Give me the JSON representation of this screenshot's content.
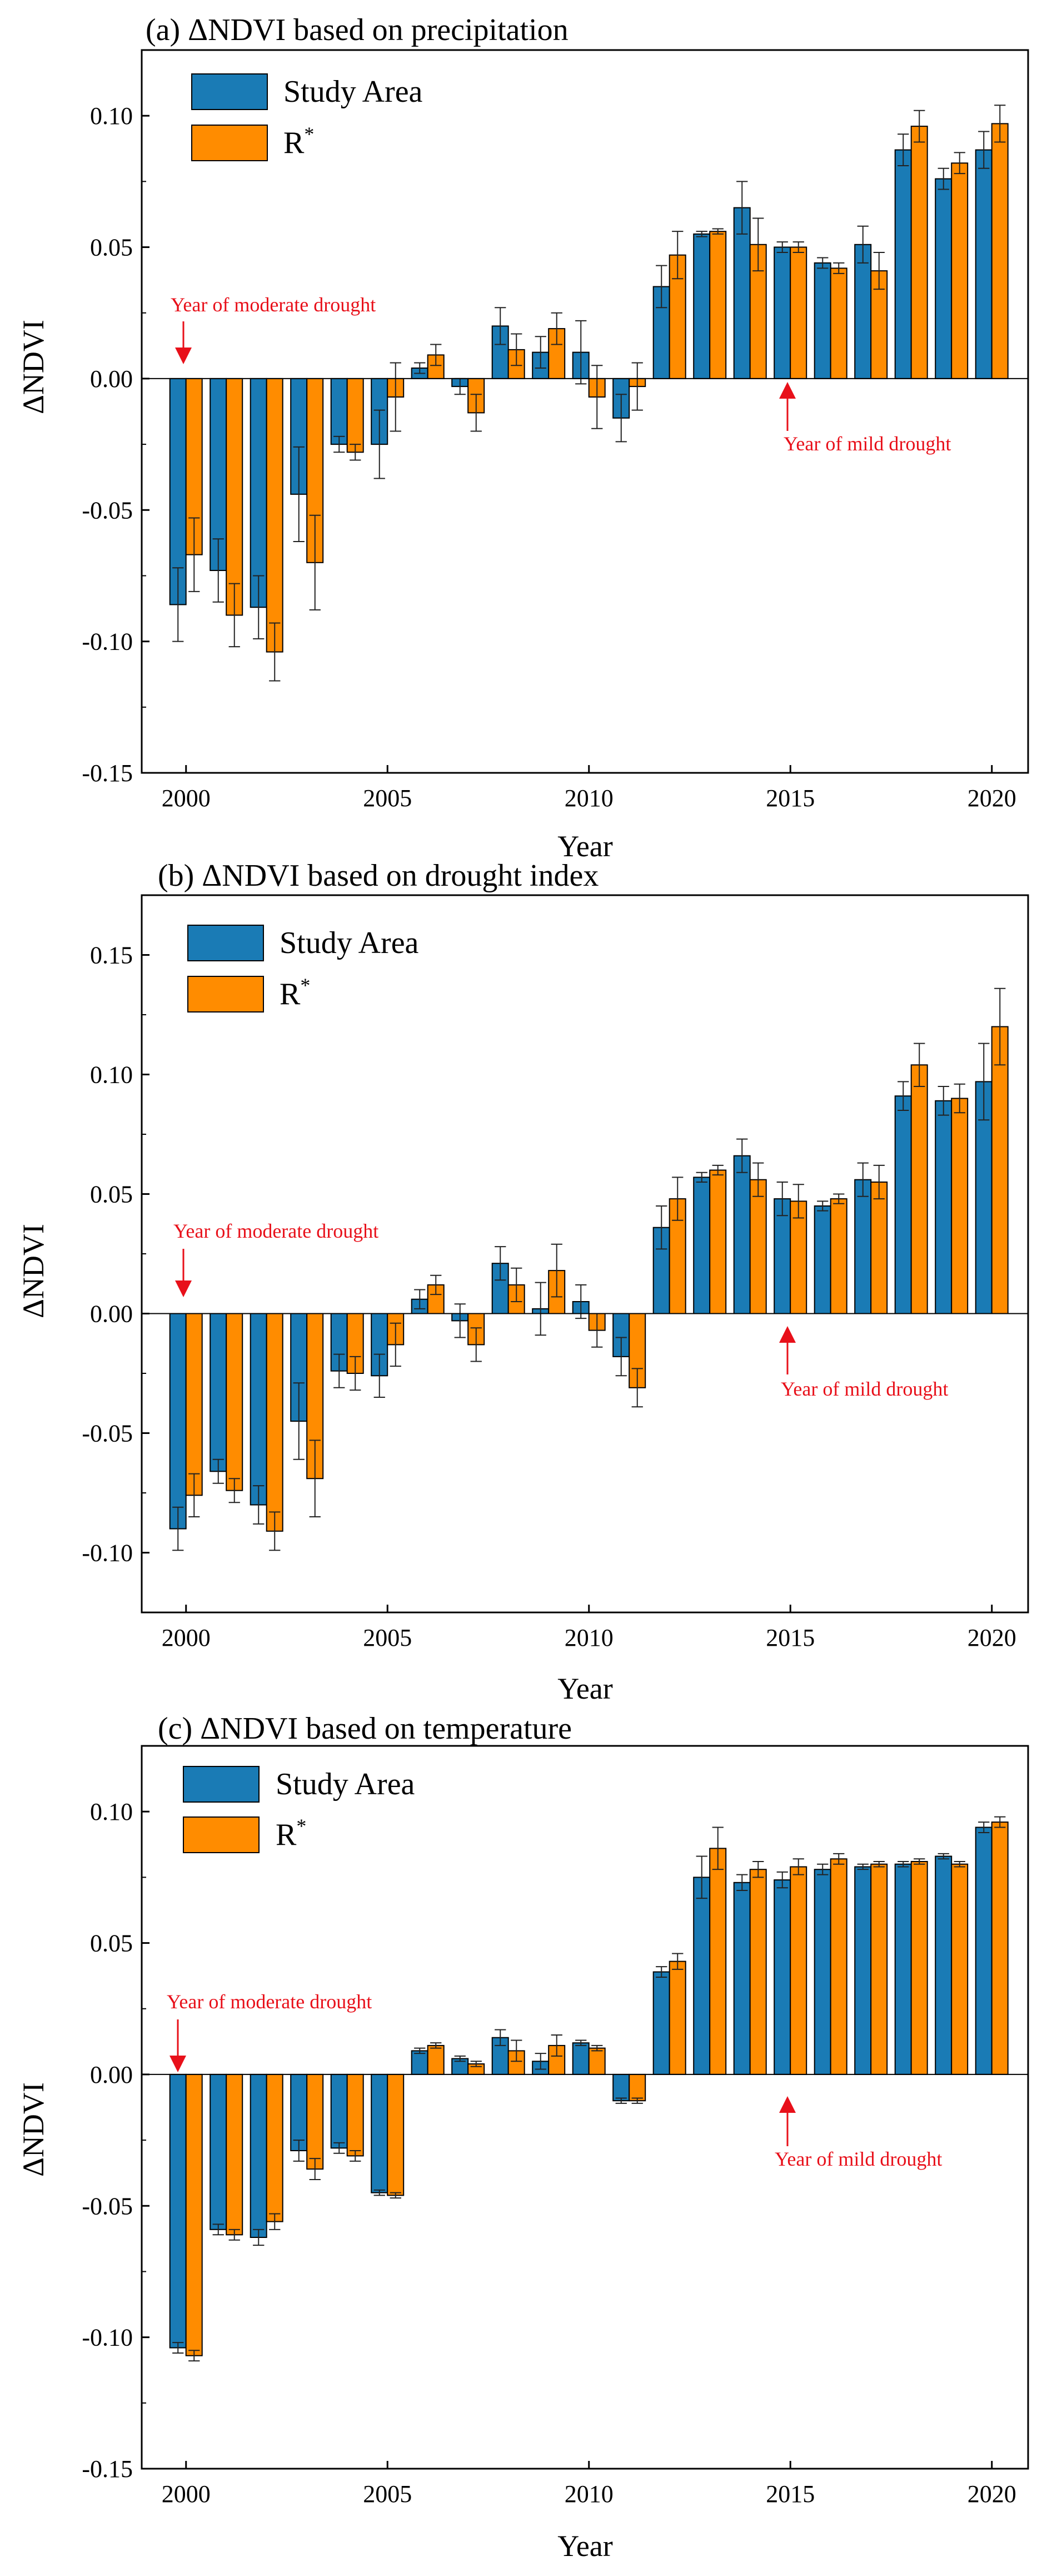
{
  "colors": {
    "study_area": "#1a7bb5",
    "r_star": "#ff8c00",
    "annotation": "#e8101a",
    "error_bar": "#222222"
  },
  "chart_data": [
    {
      "type": "bar",
      "title": "(a) ΔNDVI based on precipitation",
      "xlabel": "Year",
      "ylabel": "ΔNDVI",
      "xlim": [
        1998.9,
        2020.9
      ],
      "ylim": [
        -0.15,
        0.125
      ],
      "xticks": [
        2000,
        2005,
        2010,
        2015,
        2020
      ],
      "xtick_labels": [
        "2000",
        "2005",
        "2010",
        "2015",
        "2020"
      ],
      "yticks": [
        -0.15,
        -0.1,
        -0.05,
        0,
        0.05,
        0.1
      ],
      "ytick_labels": [
        "-0.15",
        "-0.10",
        "-0.05",
        "0.00",
        "0.05",
        "0.10"
      ],
      "legend": {
        "position": "top-left",
        "entries": [
          "Study Area",
          "R*"
        ]
      },
      "categories": [
        2000,
        2001,
        2002,
        2003,
        2004,
        2005,
        2006,
        2007,
        2008,
        2009,
        2010,
        2011,
        2012,
        2013,
        2014,
        2015,
        2016,
        2017,
        2018,
        2019,
        2020
      ],
      "series": [
        {
          "name": "Study Area",
          "values": [
            -0.086,
            -0.073,
            -0.087,
            -0.044,
            -0.025,
            -0.025,
            0.004,
            -0.003,
            0.02,
            0.01,
            0.01,
            -0.015,
            0.035,
            0.055,
            0.065,
            0.05,
            0.044,
            0.051,
            0.087,
            0.076,
            0.087
          ],
          "errors": [
            0.014,
            0.012,
            0.012,
            0.018,
            0.003,
            0.013,
            0.002,
            0.003,
            0.007,
            0.006,
            0.012,
            0.009,
            0.008,
            0.001,
            0.01,
            0.002,
            0.002,
            0.007,
            0.006,
            0.004,
            0.007
          ]
        },
        {
          "name": "R*",
          "values": [
            -0.067,
            -0.09,
            -0.104,
            -0.07,
            -0.028,
            -0.007,
            0.009,
            -0.013,
            0.011,
            0.019,
            -0.007,
            -0.003,
            0.047,
            0.056,
            0.051,
            0.05,
            0.042,
            0.041,
            0.096,
            0.082,
            0.097
          ],
          "errors": [
            0.014,
            0.012,
            0.011,
            0.018,
            0.003,
            0.013,
            0.004,
            0.007,
            0.006,
            0.006,
            0.012,
            0.009,
            0.009,
            0.001,
            0.01,
            0.002,
            0.002,
            0.007,
            0.006,
            0.004,
            0.007
          ]
        }
      ],
      "annotations": [
        {
          "text": "Year of moderate drought",
          "year": 2000,
          "arrow": "down"
        },
        {
          "text": "Year of mild drought",
          "year": 2015,
          "arrow": "up"
        }
      ]
    },
    {
      "type": "bar",
      "title": "(b) ΔNDVI based on drought index",
      "xlabel": "Year",
      "ylabel": "ΔNDVI",
      "xlim": [
        1998.9,
        2020.9
      ],
      "ylim": [
        -0.125,
        0.175
      ],
      "xticks": [
        2000,
        2005,
        2010,
        2015,
        2020
      ],
      "xtick_labels": [
        "2000",
        "2005",
        "2010",
        "2015",
        "2020"
      ],
      "yticks": [
        -0.1,
        -0.05,
        0,
        0.05,
        0.1,
        0.15
      ],
      "ytick_labels": [
        "-0.10",
        "-0.05",
        "0.00",
        "0.05",
        "0.10",
        "0.15"
      ],
      "legend": {
        "position": "top-left",
        "entries": [
          "Study Area",
          "R*"
        ]
      },
      "categories": [
        2000,
        2001,
        2002,
        2003,
        2004,
        2005,
        2006,
        2007,
        2008,
        2009,
        2010,
        2011,
        2012,
        2013,
        2014,
        2015,
        2016,
        2017,
        2018,
        2019,
        2020
      ],
      "series": [
        {
          "name": "Study Area",
          "values": [
            -0.09,
            -0.066,
            -0.08,
            -0.045,
            -0.024,
            -0.026,
            0.006,
            -0.003,
            0.021,
            0.002,
            0.005,
            -0.018,
            0.036,
            0.057,
            0.066,
            0.048,
            0.045,
            0.056,
            0.091,
            0.089,
            0.097
          ],
          "errors": [
            0.009,
            0.005,
            0.008,
            0.016,
            0.007,
            0.009,
            0.004,
            0.007,
            0.007,
            0.011,
            0.007,
            0.008,
            0.009,
            0.002,
            0.007,
            0.007,
            0.002,
            0.007,
            0.006,
            0.006,
            0.016
          ]
        },
        {
          "name": "R*",
          "values": [
            -0.076,
            -0.074,
            -0.091,
            -0.069,
            -0.025,
            -0.013,
            0.012,
            -0.013,
            0.012,
            0.018,
            -0.007,
            -0.031,
            0.048,
            0.06,
            0.056,
            0.047,
            0.048,
            0.055,
            0.104,
            0.09,
            0.12
          ],
          "errors": [
            0.009,
            0.005,
            0.008,
            0.016,
            0.007,
            0.009,
            0.004,
            0.007,
            0.007,
            0.011,
            0.007,
            0.008,
            0.009,
            0.002,
            0.007,
            0.007,
            0.002,
            0.007,
            0.009,
            0.006,
            0.016
          ]
        }
      ],
      "annotations": [
        {
          "text": "Year of moderate drought",
          "year": 2000,
          "arrow": "down"
        },
        {
          "text": "Year of mild drought",
          "year": 2015,
          "arrow": "up"
        }
      ]
    },
    {
      "type": "bar",
      "title": "(c) ΔNDVI based on temperature",
      "xlabel": "Year",
      "ylabel": "ΔNDVI",
      "xlim": [
        1998.9,
        2020.9
      ],
      "ylim": [
        -0.15,
        0.125
      ],
      "xticks": [
        2000,
        2005,
        2010,
        2015,
        2020
      ],
      "xtick_labels": [
        "2000",
        "2005",
        "2010",
        "2015",
        "2020"
      ],
      "yticks": [
        -0.15,
        -0.1,
        -0.05,
        0,
        0.05,
        0.1
      ],
      "ytick_labels": [
        "-0.15",
        "-0.10",
        "-0.05",
        "0.00",
        "0.05",
        "0.10"
      ],
      "legend": {
        "position": "top-left",
        "entries": [
          "Study Area",
          "R*"
        ]
      },
      "categories": [
        2000,
        2001,
        2002,
        2003,
        2004,
        2005,
        2006,
        2007,
        2008,
        2009,
        2010,
        2011,
        2012,
        2013,
        2014,
        2015,
        2016,
        2017,
        2018,
        2019,
        2020
      ],
      "series": [
        {
          "name": "Study Area",
          "values": [
            -0.104,
            -0.059,
            -0.062,
            -0.029,
            -0.028,
            -0.045,
            0.009,
            0.006,
            0.014,
            0.005,
            0.012,
            -0.01,
            0.039,
            0.075,
            0.073,
            0.074,
            0.078,
            0.079,
            0.08,
            0.083,
            0.094
          ],
          "errors": [
            0.002,
            0.002,
            0.003,
            0.004,
            0.002,
            0.001,
            0.001,
            0.001,
            0.003,
            0.003,
            0.001,
            0.001,
            0.002,
            0.008,
            0.003,
            0.003,
            0.002,
            0.001,
            0.001,
            0.001,
            0.002
          ]
        },
        {
          "name": "R*",
          "values": [
            -0.107,
            -0.061,
            -0.056,
            -0.036,
            -0.031,
            -0.046,
            0.011,
            0.004,
            0.009,
            0.011,
            0.01,
            -0.01,
            0.043,
            0.086,
            0.078,
            0.079,
            0.082,
            0.08,
            0.081,
            0.08,
            0.096
          ],
          "errors": [
            0.002,
            0.002,
            0.003,
            0.004,
            0.002,
            0.001,
            0.001,
            0.001,
            0.004,
            0.004,
            0.001,
            0.001,
            0.003,
            0.008,
            0.003,
            0.003,
            0.002,
            0.001,
            0.001,
            0.001,
            0.002
          ]
        }
      ],
      "annotations": [
        {
          "text": "Year of moderate drought",
          "year": 2000,
          "arrow": "down"
        },
        {
          "text": "Year of mild drought",
          "year": 2015,
          "arrow": "up"
        }
      ]
    }
  ]
}
